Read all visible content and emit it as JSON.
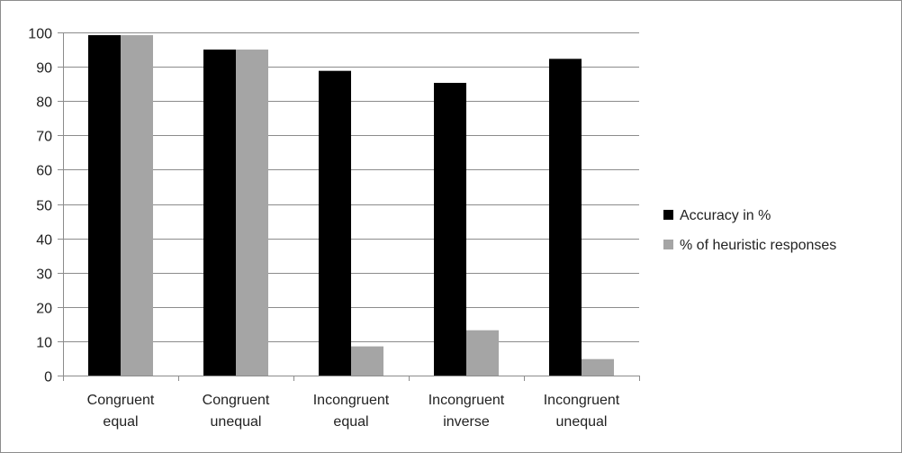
{
  "chart_data": {
    "type": "bar",
    "categories": [
      [
        "Congruent",
        "equal"
      ],
      [
        "Congruent",
        "unequal"
      ],
      [
        "Incongruent",
        "equal"
      ],
      [
        "Incongruent",
        "inverse"
      ],
      [
        "Incongruent",
        "unequal"
      ]
    ],
    "series": [
      {
        "name": "Accuracy in %",
        "color": "#000000",
        "values": [
          99.2,
          95.0,
          88.8,
          85.3,
          92.3
        ]
      },
      {
        "name": "% of heuristic responses",
        "color": "#a5a5a5",
        "values": [
          99.2,
          95.0,
          8.5,
          13.2,
          4.8
        ]
      }
    ],
    "ylim": [
      0,
      100
    ],
    "yticks": [
      0,
      10,
      20,
      30,
      40,
      50,
      60,
      70,
      80,
      90,
      100
    ],
    "grid": true,
    "legend_position": "right",
    "title": "",
    "xlabel": "",
    "ylabel": ""
  }
}
